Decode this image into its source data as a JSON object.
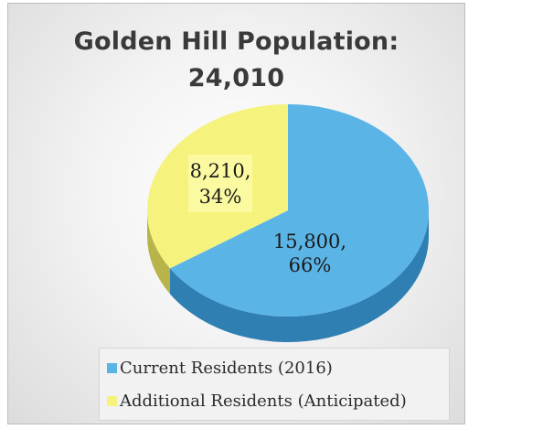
{
  "chart_data": {
    "type": "pie",
    "title": "Golden Hill Population:",
    "subtitle": "24,010",
    "categories": [
      "Current Residents (2016)",
      "Additional Residents (Anticipated)"
    ],
    "values": [
      15800,
      8210
    ],
    "percentages": [
      66,
      34
    ],
    "data_labels": [
      {
        "value": "15,800,",
        "percent": "66%"
      },
      {
        "value": "8,210,",
        "percent": "34%"
      }
    ],
    "colors": [
      "#5bb4e6",
      "#f5f27e"
    ],
    "side_colors": [
      "#2f7fb3",
      "#b8b44a"
    ],
    "legend_position": "bottom",
    "style": "3d-tilted"
  }
}
